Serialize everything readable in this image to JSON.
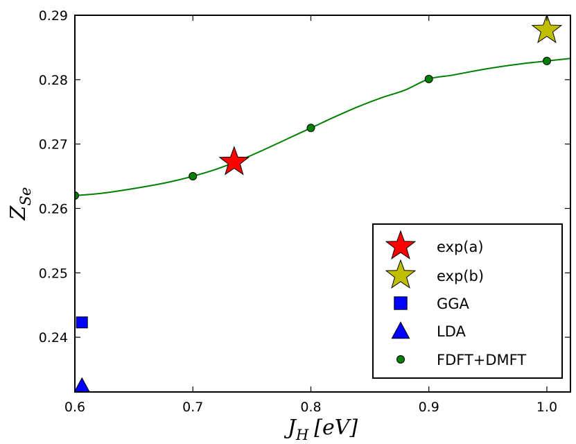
{
  "chart_data": {
    "type": "scatter",
    "title": "",
    "xlabel": "J_H [eV]",
    "ylabel": "Z_Se",
    "xlabel_parts": {
      "main": "J",
      "sub": "H",
      "unit": "[eV]"
    },
    "ylabel_parts": {
      "main": "Z",
      "sub": "Se"
    },
    "xlim": [
      0.6,
      1.02
    ],
    "ylim": [
      0.2315,
      0.29
    ],
    "xticks": [
      0.6,
      0.7,
      0.8,
      0.9,
      1.0
    ],
    "xtick_labels": [
      "0.6",
      "0.7",
      "0.8",
      "0.9",
      "1.0"
    ],
    "yticks": [
      0.24,
      0.25,
      0.26,
      0.27,
      0.28,
      0.29
    ],
    "ytick_labels": [
      "0.24",
      "0.25",
      "0.26",
      "0.27",
      "0.28",
      "0.29"
    ],
    "grid": false,
    "legend_position": "bottom-right",
    "series": [
      {
        "name": "exp(a)",
        "marker": "star",
        "color": "#ff0000",
        "x": [
          0.735
        ],
        "y": [
          0.2672
        ]
      },
      {
        "name": "exp(b)",
        "marker": "star",
        "color": "#bfbf00",
        "x": [
          1.0
        ],
        "y": [
          0.2877
        ]
      },
      {
        "name": "GGA",
        "marker": "square",
        "color": "#0000ff",
        "x": [
          0.606
        ],
        "y": [
          0.2423
        ]
      },
      {
        "name": "LDA",
        "marker": "triangle",
        "color": "#0000ff",
        "x": [
          0.606
        ],
        "y": [
          0.2325
        ]
      },
      {
        "name": "FDFT+DMFT",
        "marker": "circle",
        "color": "#007f00",
        "x": [
          0.6,
          0.7,
          0.8,
          0.9,
          1.0
        ],
        "y": [
          0.262,
          0.265,
          0.2725,
          0.2801,
          0.2829
        ]
      }
    ],
    "fit_curve": {
      "name": "FDFT+DMFT fit",
      "color": "#007f00",
      "x": [
        0.6,
        0.62,
        0.64,
        0.66,
        0.68,
        0.7,
        0.72,
        0.74,
        0.76,
        0.78,
        0.8,
        0.82,
        0.84,
        0.86,
        0.88,
        0.9,
        0.92,
        0.94,
        0.96,
        0.98,
        1.0,
        1.02
      ],
      "y": [
        0.262,
        0.2623,
        0.2628,
        0.2634,
        0.2641,
        0.265,
        0.2661,
        0.2675,
        0.2691,
        0.2708,
        0.2725,
        0.2742,
        0.2758,
        0.2772,
        0.2784,
        0.2801,
        0.2807,
        0.2814,
        0.282,
        0.2825,
        0.2829,
        0.2833
      ]
    }
  }
}
